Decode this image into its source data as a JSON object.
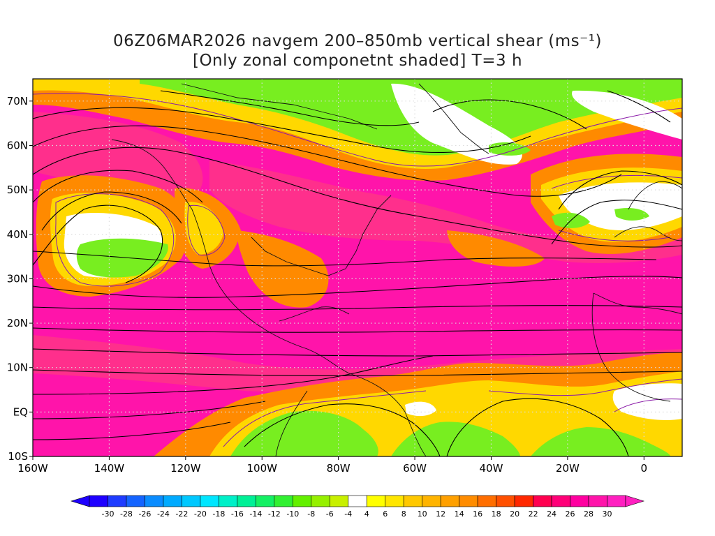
{
  "title": {
    "line1": "06Z06MAR2026 navgem 200–850mb vertical shear (ms⁻¹)",
    "line2": "[Only zonal componetnt shaded] T=3 h"
  },
  "map": {
    "lon_range": [
      -160,
      10
    ],
    "lat_range": [
      -10,
      75
    ],
    "lon_labels": [
      {
        "lon": -160,
        "text": "160W"
      },
      {
        "lon": -140,
        "text": "140W"
      },
      {
        "lon": -120,
        "text": "120W"
      },
      {
        "lon": -100,
        "text": "100W"
      },
      {
        "lon": -80,
        "text": "80W"
      },
      {
        "lon": -60,
        "text": "60W"
      },
      {
        "lon": -40,
        "text": "40W"
      },
      {
        "lon": -20,
        "text": "20W"
      },
      {
        "lon": 0,
        "text": "0"
      }
    ],
    "lat_labels": [
      {
        "lat": 70,
        "text": "70N"
      },
      {
        "lat": 60,
        "text": "60N"
      },
      {
        "lat": 50,
        "text": "50N"
      },
      {
        "lat": 40,
        "text": "40N"
      },
      {
        "lat": 30,
        "text": "30N"
      },
      {
        "lat": 20,
        "text": "20N"
      },
      {
        "lat": 10,
        "text": "10N"
      },
      {
        "lat": 0,
        "text": "EQ"
      },
      {
        "lat": -10,
        "text": "10S"
      }
    ]
  },
  "colorbar": {
    "labels": [
      "-30",
      "-28",
      "-26",
      "-24",
      "-22",
      "-20",
      "-18",
      "-16",
      "-14",
      "-12",
      "-10",
      "-8",
      "-6",
      "-4",
      "4",
      "6",
      "8",
      "10",
      "12",
      "14",
      "16",
      "18",
      "20",
      "22",
      "24",
      "26",
      "28",
      "30"
    ],
    "colors": [
      "#1e00ff",
      "#1e3cff",
      "#1464ff",
      "#0a8cff",
      "#00aaff",
      "#00c8ff",
      "#00e6ff",
      "#00f0c8",
      "#00f096",
      "#14f064",
      "#32f032",
      "#64f000",
      "#96f000",
      "#c8f000",
      "#ffffff",
      "#ffff00",
      "#ffe600",
      "#ffc800",
      "#ffb400",
      "#ffa000",
      "#ff8c00",
      "#ff6e00",
      "#ff5000",
      "#ff2800",
      "#ff0050",
      "#ff0078",
      "#ff00a0",
      "#ff14aa",
      "#ff20c0"
    ]
  },
  "colors": {
    "magenta": "#ff14aa",
    "pink": "#ff2f8c",
    "orange": "#ff8a00",
    "yellow": "#ffd800",
    "green": "#78ee20",
    "white": "#ffffff",
    "contour": "#8a1aa8"
  }
}
